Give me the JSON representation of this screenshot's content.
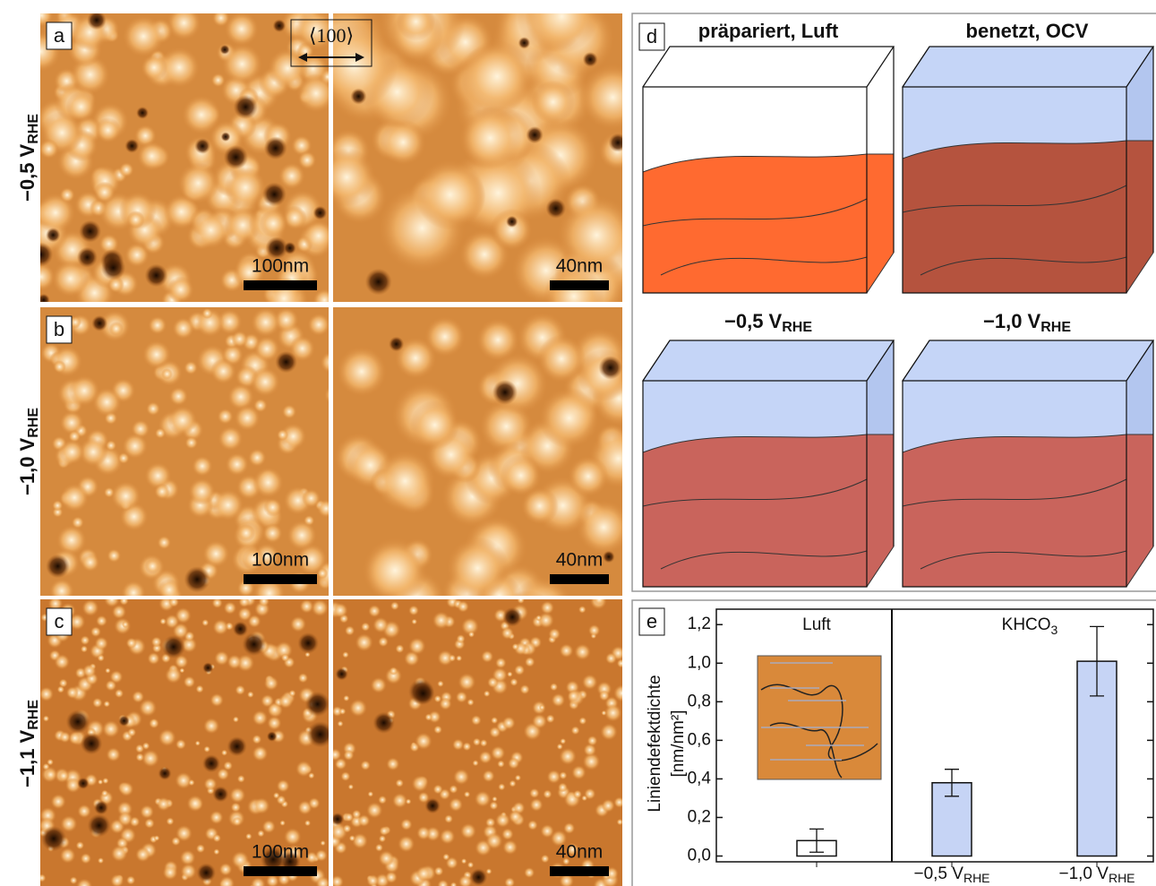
{
  "figure": {
    "direction_label": "⟨100⟩",
    "rows": [
      {
        "panel": "a",
        "potential": "−0,5 V",
        "subscript": "RHE",
        "scalebars": [
          "100nm",
          "40nm"
        ]
      },
      {
        "panel": "b",
        "potential": "−1,0 V",
        "subscript": "RHE",
        "scalebars": [
          "100nm",
          "40nm"
        ]
      },
      {
        "panel": "c",
        "potential": "−1,1 V",
        "subscript": "RHE",
        "scalebars": [
          "100nm",
          "40nm"
        ]
      }
    ],
    "panel_d": {
      "panel": "d",
      "titles": [
        {
          "text": "präpariert, Luft"
        },
        {
          "text": "benetzt, OCV"
        },
        {
          "text": "−0,5 V",
          "subscript": "RHE"
        },
        {
          "text": "−1,0 V",
          "subscript": "RHE"
        }
      ]
    }
  },
  "chart_data": {
    "type": "bar",
    "panel": "e",
    "y_label": [
      "Liniendefektdichte",
      "[nm/nm²]"
    ],
    "groups": [
      {
        "text": "Luft"
      },
      {
        "text": "KHCO",
        "subscript": "3"
      }
    ],
    "categories": [
      null,
      "−0,5 V",
      "−1,0 V"
    ],
    "category_subscripts": [
      null,
      "RHE",
      "RHE"
    ],
    "values": [
      0.08,
      0.38,
      1.01
    ],
    "errors": [
      0.06,
      0.07,
      0.18
    ],
    "colors": [
      "#ffffff",
      "#c6d4f5",
      "#c6d4f5"
    ],
    "ylim": [
      -0.03,
      1.28
    ],
    "yticks": [
      {
        "value": 0,
        "label": "0,0"
      },
      {
        "value": 0.2,
        "label": "0,2"
      },
      {
        "value": 0.4,
        "label": "0,4"
      },
      {
        "value": 0.6,
        "label": "0,6"
      },
      {
        "value": 0.8,
        "label": "0,8"
      },
      {
        "value": 1.0,
        "label": "1,0"
      },
      {
        "value": 1.2,
        "label": "1,2"
      }
    ]
  }
}
